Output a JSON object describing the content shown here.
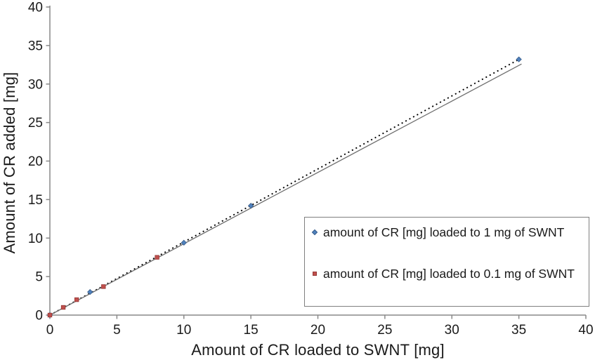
{
  "chart_data": {
    "type": "scatter",
    "title": "",
    "xlabel": "Amount of CR loaded to SWNT [mg]",
    "ylabel": "Amount of CR added [mg]",
    "xlim": [
      0,
      40
    ],
    "ylim": [
      0,
      40
    ],
    "xticks": [
      0,
      5,
      10,
      15,
      20,
      25,
      30,
      35,
      40
    ],
    "yticks": [
      0,
      5,
      10,
      15,
      20,
      25,
      30,
      35,
      40
    ],
    "grid": false,
    "background": "#ffffff",
    "axis_color": "#898989",
    "text_color": "#1a1a1a",
    "legend": {
      "position": "inside-bottom-right",
      "border_color": "#7f7f7f"
    },
    "series": [
      {
        "name": "amount of CR [mg] loaded to 1 mg of SWNT",
        "marker": "diamond",
        "color": "#4F81BD",
        "edge_color": "#385D8A",
        "points": [
          [
            0,
            0
          ],
          [
            3,
            3
          ],
          [
            10,
            9.4
          ],
          [
            15,
            14.2
          ],
          [
            35,
            33.2
          ]
        ]
      },
      {
        "name": "amount of CR [mg] loaded to 0.1 mg of SWNT",
        "marker": "square",
        "color": "#C0504D",
        "edge_color": "#953735",
        "points": [
          [
            0,
            0
          ],
          [
            1,
            1
          ],
          [
            2,
            2
          ],
          [
            4,
            3.7
          ],
          [
            8,
            7.5
          ]
        ]
      }
    ],
    "trendlines": [
      {
        "name": "dotted linear fit",
        "style": "dotted",
        "color": "#000000",
        "from": [
          0,
          0
        ],
        "to": [
          35,
          33.2
        ]
      },
      {
        "name": "solid linear fit",
        "style": "solid",
        "color": "#6e6e6e",
        "from": [
          0,
          0
        ],
        "to": [
          35.2,
          32.6
        ]
      }
    ]
  }
}
